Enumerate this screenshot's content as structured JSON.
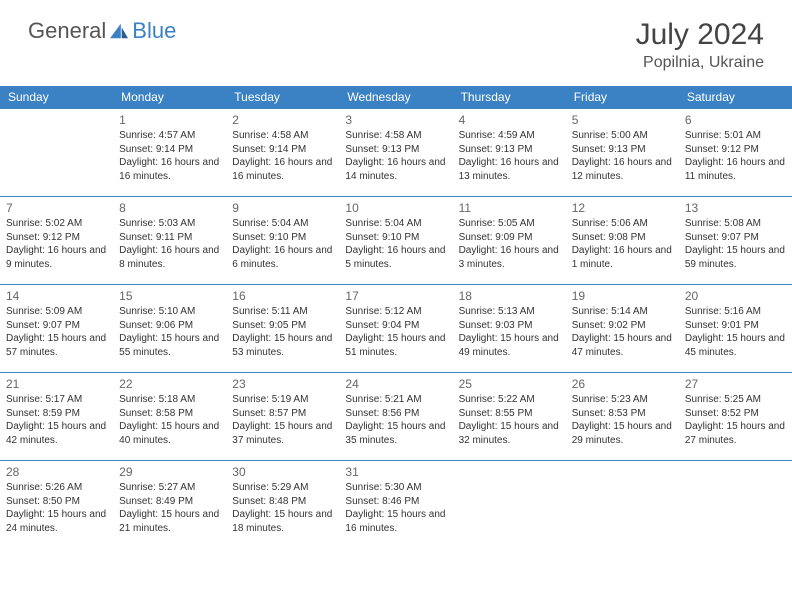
{
  "brand": {
    "part1": "General",
    "part2": "Blue"
  },
  "title": "July 2024",
  "location": "Popilnia, Ukraine",
  "colors": {
    "accent": "#3b82c4",
    "header_text": "#ffffff",
    "body_text": "#333333",
    "title_text": "#444444",
    "border": "#3b82c4"
  },
  "weekdays": [
    "Sunday",
    "Monday",
    "Tuesday",
    "Wednesday",
    "Thursday",
    "Friday",
    "Saturday"
  ],
  "weeks": [
    [
      null,
      {
        "n": "1",
        "sr": "4:57 AM",
        "ss": "9:14 PM",
        "dl": "16 hours and 16 minutes."
      },
      {
        "n": "2",
        "sr": "4:58 AM",
        "ss": "9:14 PM",
        "dl": "16 hours and 16 minutes."
      },
      {
        "n": "3",
        "sr": "4:58 AM",
        "ss": "9:13 PM",
        "dl": "16 hours and 14 minutes."
      },
      {
        "n": "4",
        "sr": "4:59 AM",
        "ss": "9:13 PM",
        "dl": "16 hours and 13 minutes."
      },
      {
        "n": "5",
        "sr": "5:00 AM",
        "ss": "9:13 PM",
        "dl": "16 hours and 12 minutes."
      },
      {
        "n": "6",
        "sr": "5:01 AM",
        "ss": "9:12 PM",
        "dl": "16 hours and 11 minutes."
      }
    ],
    [
      {
        "n": "7",
        "sr": "5:02 AM",
        "ss": "9:12 PM",
        "dl": "16 hours and 9 minutes."
      },
      {
        "n": "8",
        "sr": "5:03 AM",
        "ss": "9:11 PM",
        "dl": "16 hours and 8 minutes."
      },
      {
        "n": "9",
        "sr": "5:04 AM",
        "ss": "9:10 PM",
        "dl": "16 hours and 6 minutes."
      },
      {
        "n": "10",
        "sr": "5:04 AM",
        "ss": "9:10 PM",
        "dl": "16 hours and 5 minutes."
      },
      {
        "n": "11",
        "sr": "5:05 AM",
        "ss": "9:09 PM",
        "dl": "16 hours and 3 minutes."
      },
      {
        "n": "12",
        "sr": "5:06 AM",
        "ss": "9:08 PM",
        "dl": "16 hours and 1 minute."
      },
      {
        "n": "13",
        "sr": "5:08 AM",
        "ss": "9:07 PM",
        "dl": "15 hours and 59 minutes."
      }
    ],
    [
      {
        "n": "14",
        "sr": "5:09 AM",
        "ss": "9:07 PM",
        "dl": "15 hours and 57 minutes."
      },
      {
        "n": "15",
        "sr": "5:10 AM",
        "ss": "9:06 PM",
        "dl": "15 hours and 55 minutes."
      },
      {
        "n": "16",
        "sr": "5:11 AM",
        "ss": "9:05 PM",
        "dl": "15 hours and 53 minutes."
      },
      {
        "n": "17",
        "sr": "5:12 AM",
        "ss": "9:04 PM",
        "dl": "15 hours and 51 minutes."
      },
      {
        "n": "18",
        "sr": "5:13 AM",
        "ss": "9:03 PM",
        "dl": "15 hours and 49 minutes."
      },
      {
        "n": "19",
        "sr": "5:14 AM",
        "ss": "9:02 PM",
        "dl": "15 hours and 47 minutes."
      },
      {
        "n": "20",
        "sr": "5:16 AM",
        "ss": "9:01 PM",
        "dl": "15 hours and 45 minutes."
      }
    ],
    [
      {
        "n": "21",
        "sr": "5:17 AM",
        "ss": "8:59 PM",
        "dl": "15 hours and 42 minutes."
      },
      {
        "n": "22",
        "sr": "5:18 AM",
        "ss": "8:58 PM",
        "dl": "15 hours and 40 minutes."
      },
      {
        "n": "23",
        "sr": "5:19 AM",
        "ss": "8:57 PM",
        "dl": "15 hours and 37 minutes."
      },
      {
        "n": "24",
        "sr": "5:21 AM",
        "ss": "8:56 PM",
        "dl": "15 hours and 35 minutes."
      },
      {
        "n": "25",
        "sr": "5:22 AM",
        "ss": "8:55 PM",
        "dl": "15 hours and 32 minutes."
      },
      {
        "n": "26",
        "sr": "5:23 AM",
        "ss": "8:53 PM",
        "dl": "15 hours and 29 minutes."
      },
      {
        "n": "27",
        "sr": "5:25 AM",
        "ss": "8:52 PM",
        "dl": "15 hours and 27 minutes."
      }
    ],
    [
      {
        "n": "28",
        "sr": "5:26 AM",
        "ss": "8:50 PM",
        "dl": "15 hours and 24 minutes."
      },
      {
        "n": "29",
        "sr": "5:27 AM",
        "ss": "8:49 PM",
        "dl": "15 hours and 21 minutes."
      },
      {
        "n": "30",
        "sr": "5:29 AM",
        "ss": "8:48 PM",
        "dl": "15 hours and 18 minutes."
      },
      {
        "n": "31",
        "sr": "5:30 AM",
        "ss": "8:46 PM",
        "dl": "15 hours and 16 minutes."
      },
      null,
      null,
      null
    ]
  ],
  "labels": {
    "sunrise": "Sunrise:",
    "sunset": "Sunset:",
    "daylight": "Daylight:"
  }
}
